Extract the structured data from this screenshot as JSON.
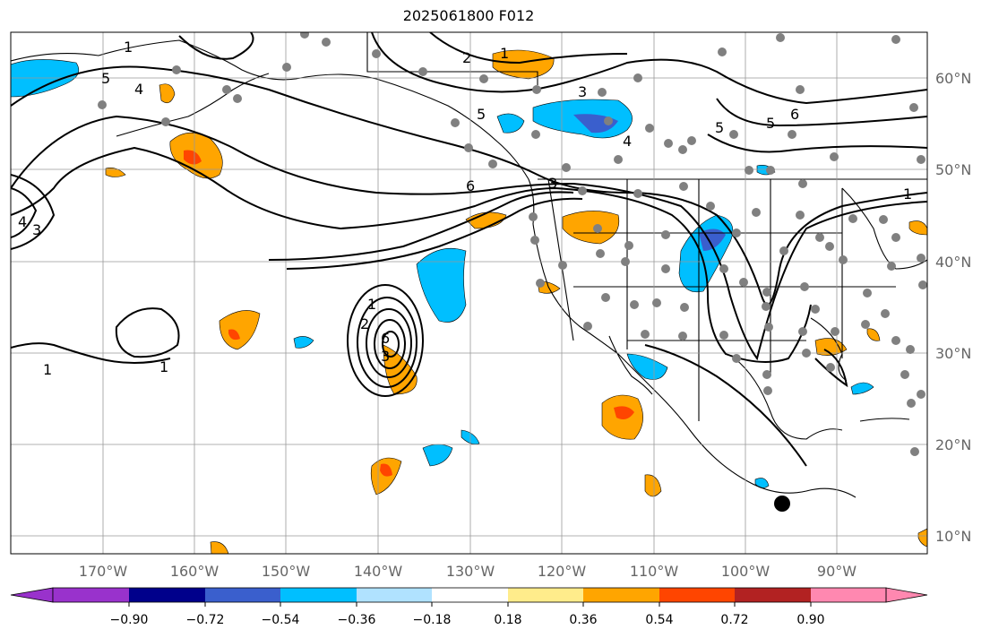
{
  "title": "2025061800 F012",
  "map": {
    "lon_range": [
      -180,
      -80
    ],
    "lat_range": [
      8,
      65
    ],
    "lon_labels": [
      "170°W",
      "160°W",
      "150°W",
      "140°W",
      "130°W",
      "120°W",
      "110°W",
      "100°W",
      "90°W"
    ],
    "lat_labels": [
      "10°N",
      "20°N",
      "30°N",
      "40°N",
      "50°N",
      "60°N"
    ],
    "grid": true,
    "contour_labels": [
      "5",
      "4",
      "3",
      "2",
      "1",
      "1",
      "3",
      "5",
      "4",
      "6",
      "6",
      "3",
      "5",
      "4",
      "1",
      "1",
      "1",
      "3",
      "5",
      "2",
      "6",
      "1"
    ]
  },
  "colorbar": {
    "orientation": "horizontal",
    "extend": "both",
    "tick_labels": [
      "−0.90",
      "−0.72",
      "−0.54",
      "−0.36",
      "−0.18",
      "0.18",
      "0.36",
      "0.54",
      "0.72",
      "0.90"
    ],
    "colors": [
      "#9932cc",
      "#00008b",
      "#3a5fcd",
      "#00bfff",
      "#b0e2ff",
      "#ffffff",
      "#ffec8b",
      "#ffa500",
      "#ff4500",
      "#b22222",
      "#ff88b0"
    ]
  },
  "colors": {
    "station_dot": "#808080",
    "contour": "#000000",
    "grid": "#999999"
  }
}
